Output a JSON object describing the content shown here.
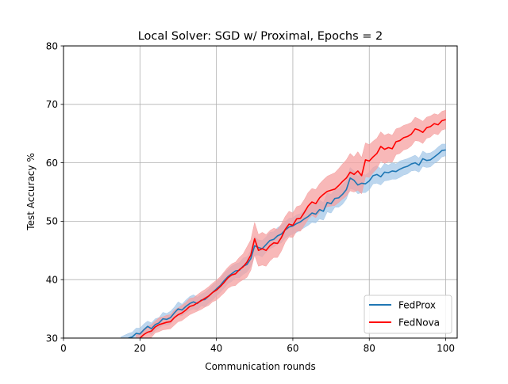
{
  "chart_data": {
    "type": "line",
    "title": "Local Solver: SGD w/ Proximal, Epochs = 2",
    "xlabel": "Communication rounds",
    "ylabel": "Test Accuracy %",
    "xlim": [
      0,
      103
    ],
    "ylim": [
      30,
      80
    ],
    "xticks": [
      0,
      20,
      40,
      60,
      80,
      100
    ],
    "yticks": [
      30,
      40,
      50,
      60,
      70,
      80
    ],
    "grid": true,
    "legend_position": "lower-right",
    "series": [
      {
        "name": "FedProx",
        "color": "#1f77b4",
        "band_color": "#a6c8e8",
        "points": [
          [
            15,
            29.2
          ],
          [
            17,
            30.0
          ],
          [
            18,
            30.2
          ],
          [
            19,
            30.8
          ],
          [
            20,
            30.7
          ],
          [
            21,
            31.4
          ],
          [
            22,
            32.0
          ],
          [
            23,
            31.6
          ],
          [
            24,
            32.3
          ],
          [
            25,
            32.6
          ],
          [
            26,
            33.3
          ],
          [
            27,
            33.2
          ],
          [
            28,
            33.5
          ],
          [
            29,
            34.3
          ],
          [
            30,
            35.0
          ],
          [
            31,
            34.8
          ],
          [
            32,
            35.4
          ],
          [
            33,
            35.9
          ],
          [
            34,
            36.2
          ],
          [
            35,
            35.9
          ],
          [
            36,
            36.5
          ],
          [
            37,
            36.6
          ],
          [
            38,
            37.2
          ],
          [
            39,
            37.8
          ],
          [
            40,
            38.4
          ],
          [
            41,
            39.0
          ],
          [
            42,
            39.8
          ],
          [
            43,
            40.5
          ],
          [
            44,
            41.0
          ],
          [
            45,
            41.5
          ],
          [
            46,
            41.6
          ],
          [
            47,
            42.3
          ],
          [
            48,
            42.6
          ],
          [
            49,
            43.6
          ],
          [
            50,
            45.8
          ],
          [
            51,
            45.5
          ],
          [
            52,
            45.3
          ],
          [
            53,
            46.0
          ],
          [
            54,
            46.7
          ],
          [
            55,
            46.9
          ],
          [
            56,
            47.5
          ],
          [
            57,
            47.8
          ],
          [
            58,
            48.5
          ],
          [
            59,
            49.0
          ],
          [
            60,
            49.2
          ],
          [
            61,
            49.6
          ],
          [
            62,
            49.9
          ],
          [
            63,
            50.4
          ],
          [
            64,
            50.8
          ],
          [
            65,
            51.4
          ],
          [
            66,
            51.2
          ],
          [
            67,
            52.0
          ],
          [
            68,
            51.7
          ],
          [
            69,
            53.2
          ],
          [
            70,
            53.0
          ],
          [
            71,
            53.9
          ],
          [
            72,
            54.0
          ],
          [
            73,
            54.6
          ],
          [
            74,
            55.4
          ],
          [
            75,
            57.4
          ],
          [
            76,
            57.0
          ],
          [
            77,
            56.2
          ],
          [
            78,
            56.5
          ],
          [
            79,
            56.4
          ],
          [
            80,
            56.9
          ],
          [
            81,
            57.8
          ],
          [
            82,
            58.0
          ],
          [
            83,
            57.6
          ],
          [
            84,
            58.4
          ],
          [
            85,
            58.3
          ],
          [
            86,
            58.6
          ],
          [
            87,
            58.5
          ],
          [
            88,
            58.9
          ],
          [
            89,
            59.2
          ],
          [
            90,
            59.4
          ],
          [
            91,
            59.8
          ],
          [
            92,
            60.0
          ],
          [
            93,
            59.6
          ],
          [
            94,
            60.7
          ],
          [
            95,
            60.4
          ],
          [
            96,
            60.5
          ],
          [
            97,
            61.0
          ],
          [
            98,
            61.5
          ],
          [
            99,
            62.1
          ],
          [
            100,
            62.2
          ]
        ],
        "band": [
          1.0,
          0.8,
          0.8,
          0.9,
          1.0,
          1.0,
          0.9,
          1.0,
          1.0,
          0.9,
          1.1,
          1.0,
          1.1,
          1.0,
          1.2,
          1.0,
          1.1,
          1.2,
          1.2,
          1.1,
          1.0,
          1.2,
          1.2,
          1.3,
          1.2,
          1.2,
          1.3,
          1.2,
          1.3,
          1.2,
          1.3,
          1.4,
          1.3,
          1.4,
          1.6,
          1.3,
          1.4,
          1.3,
          1.4,
          1.3,
          1.4,
          1.5,
          1.4,
          1.5,
          1.4,
          1.5,
          1.4,
          1.5,
          1.5,
          1.6,
          1.5,
          1.6,
          1.5,
          1.6,
          1.6,
          1.5,
          1.6,
          1.7,
          1.6,
          1.8,
          1.6,
          1.5,
          1.6,
          1.5,
          1.5,
          1.4,
          1.5,
          1.4,
          1.5,
          1.3,
          1.4,
          1.3,
          1.4,
          1.3,
          1.3,
          1.2,
          1.3,
          1.2,
          1.3,
          1.2,
          1.2,
          1.1,
          1.2,
          1.1,
          1.0
        ]
      },
      {
        "name": "FedNova",
        "color": "#ff0000",
        "band_color": "#f5a0a0",
        "points": [
          [
            19,
            29.6
          ],
          [
            20,
            30.0
          ],
          [
            21,
            30.6
          ],
          [
            22,
            31.0
          ],
          [
            23,
            31.2
          ],
          [
            24,
            31.9
          ],
          [
            25,
            32.3
          ],
          [
            26,
            32.5
          ],
          [
            27,
            32.7
          ],
          [
            28,
            32.8
          ],
          [
            29,
            33.5
          ],
          [
            30,
            34.0
          ],
          [
            31,
            34.3
          ],
          [
            32,
            34.8
          ],
          [
            33,
            35.4
          ],
          [
            34,
            35.6
          ],
          [
            35,
            36.0
          ],
          [
            36,
            36.4
          ],
          [
            37,
            36.8
          ],
          [
            38,
            37.2
          ],
          [
            39,
            37.8
          ],
          [
            40,
            38.2
          ],
          [
            41,
            38.8
          ],
          [
            42,
            39.5
          ],
          [
            43,
            40.3
          ],
          [
            44,
            40.8
          ],
          [
            45,
            41.0
          ],
          [
            46,
            41.7
          ],
          [
            47,
            42.2
          ],
          [
            48,
            43.0
          ],
          [
            49,
            44.2
          ],
          [
            50,
            47.0
          ],
          [
            51,
            45.0
          ],
          [
            52,
            45.3
          ],
          [
            53,
            45.0
          ],
          [
            54,
            45.8
          ],
          [
            55,
            46.3
          ],
          [
            56,
            46.2
          ],
          [
            57,
            47.2
          ],
          [
            58,
            48.6
          ],
          [
            59,
            49.5
          ],
          [
            60,
            49.3
          ],
          [
            61,
            50.4
          ],
          [
            62,
            50.5
          ],
          [
            63,
            51.5
          ],
          [
            64,
            52.6
          ],
          [
            65,
            53.3
          ],
          [
            66,
            53.0
          ],
          [
            67,
            54.0
          ],
          [
            68,
            54.6
          ],
          [
            69,
            55.1
          ],
          [
            70,
            55.3
          ],
          [
            71,
            55.5
          ],
          [
            72,
            56.1
          ],
          [
            73,
            56.8
          ],
          [
            74,
            57.4
          ],
          [
            75,
            58.4
          ],
          [
            76,
            58.0
          ],
          [
            77,
            58.6
          ],
          [
            78,
            57.8
          ],
          [
            79,
            60.5
          ],
          [
            80,
            60.3
          ],
          [
            81,
            61.0
          ],
          [
            82,
            61.6
          ],
          [
            83,
            62.8
          ],
          [
            84,
            62.3
          ],
          [
            85,
            62.6
          ],
          [
            86,
            62.4
          ],
          [
            87,
            63.6
          ],
          [
            88,
            63.8
          ],
          [
            89,
            64.3
          ],
          [
            90,
            64.5
          ],
          [
            91,
            64.9
          ],
          [
            92,
            65.8
          ],
          [
            93,
            65.6
          ],
          [
            94,
            65.2
          ],
          [
            95,
            66.0
          ],
          [
            96,
            66.2
          ],
          [
            97,
            66.7
          ],
          [
            98,
            66.5
          ],
          [
            99,
            67.2
          ],
          [
            100,
            67.4
          ]
        ],
        "band": [
          1.0,
          0.9,
          1.0,
          1.0,
          1.1,
          1.0,
          1.2,
          1.1,
          1.2,
          1.2,
          1.3,
          1.2,
          1.3,
          1.3,
          1.4,
          1.3,
          1.4,
          1.5,
          1.5,
          1.6,
          1.6,
          1.7,
          1.7,
          1.8,
          1.8,
          1.9,
          2.0,
          2.1,
          2.2,
          2.6,
          2.6,
          2.8,
          2.7,
          2.8,
          2.7,
          2.6,
          2.5,
          2.4,
          2.3,
          2.2,
          2.2,
          2.1,
          2.1,
          2.2,
          2.2,
          2.3,
          2.3,
          2.4,
          2.4,
          2.5,
          2.6,
          2.7,
          2.8,
          2.9,
          3.0,
          3.1,
          3.2,
          3.0,
          3.3,
          3.1,
          2.9,
          2.8,
          2.7,
          2.6,
          2.5,
          2.4,
          2.4,
          2.3,
          2.2,
          2.2,
          2.1,
          2.1,
          2.0,
          2.0,
          1.9,
          1.9,
          1.8,
          1.8,
          1.7,
          1.7,
          1.6,
          1.6
        ]
      }
    ]
  }
}
